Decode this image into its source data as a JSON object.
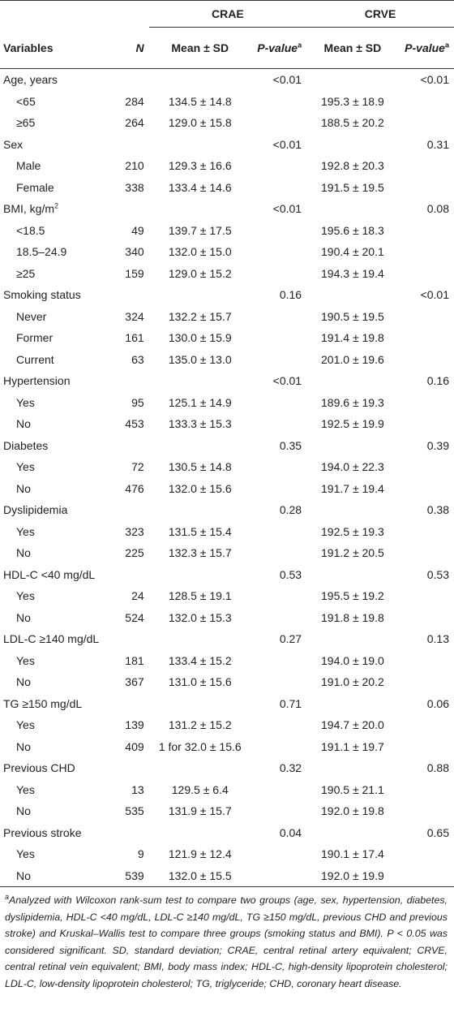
{
  "header": {
    "group_crae": "CRAE",
    "group_crve": "CRVE",
    "col_variables": "Variables",
    "col_n": "N",
    "col_mean_crae": "Mean ± SD",
    "col_p_crae": "P-value",
    "col_mean_crve": "Mean ± SD",
    "col_p_crve": "P-value",
    "sup": "a"
  },
  "rows": [
    {
      "variable": "Age, years",
      "group": true,
      "crae_p": "<0.01",
      "crve_p": "<0.01"
    },
    {
      "variable": "<65",
      "n": "284",
      "crae_mean": "134.5 ± 14.8",
      "crve_mean": "195.3 ± 18.9"
    },
    {
      "variable": "≥65",
      "n": "264",
      "crae_mean": "129.0 ± 15.8",
      "crve_mean": "188.5 ± 20.2"
    },
    {
      "variable": "Sex",
      "group": true,
      "crae_p": "<0.01",
      "crve_p": "0.31"
    },
    {
      "variable": "Male",
      "n": "210",
      "crae_mean": "129.3 ± 16.6",
      "crve_mean": "192.8 ± 20.3"
    },
    {
      "variable": "Female",
      "n": "338",
      "crae_mean": "133.4 ± 14.6",
      "crve_mean": "191.5 ± 19.5"
    },
    {
      "variable": "BMI, kg/m",
      "sup": "2",
      "group": true,
      "crae_p": "<0.01",
      "crve_p": "0.08"
    },
    {
      "variable": "<18.5",
      "n": "49",
      "crae_mean": "139.7 ± 17.5",
      "crve_mean": "195.6 ± 18.3"
    },
    {
      "variable": "18.5–24.9",
      "n": "340",
      "crae_mean": "132.0 ± 15.0",
      "crve_mean": "190.4 ± 20.1"
    },
    {
      "variable": "≥25",
      "n": "159",
      "crae_mean": "129.0 ± 15.2",
      "crve_mean": "194.3 ± 19.4"
    },
    {
      "variable": "Smoking status",
      "group": true,
      "crae_p": "0.16",
      "crve_p": "<0.01"
    },
    {
      "variable": "Never",
      "n": "324",
      "crae_mean": "132.2 ± 15.7",
      "crve_mean": "190.5 ± 19.5"
    },
    {
      "variable": "Former",
      "n": "161",
      "crae_mean": "130.0 ± 15.9",
      "crve_mean": "191.4 ± 19.8"
    },
    {
      "variable": "Current",
      "n": "63",
      "crae_mean": "135.0 ± 13.0",
      "crve_mean": "201.0 ± 19.6"
    },
    {
      "variable": "Hypertension",
      "group": true,
      "crae_p": "<0.01",
      "crve_p": "0.16"
    },
    {
      "variable": "Yes",
      "n": "95",
      "crae_mean": "125.1 ± 14.9",
      "crve_mean": "189.6 ± 19.3"
    },
    {
      "variable": "No",
      "n": "453",
      "crae_mean": "133.3 ± 15.3",
      "crve_mean": "192.5 ± 19.9"
    },
    {
      "variable": "Diabetes",
      "group": true,
      "crae_p": "0.35",
      "crve_p": "0.39"
    },
    {
      "variable": "Yes",
      "n": "72",
      "crae_mean": "130.5 ± 14.8",
      "crve_mean": "194.0 ± 22.3"
    },
    {
      "variable": "No",
      "n": "476",
      "crae_mean": "132.0 ± 15.6",
      "crve_mean": "191.7 ± 19.4"
    },
    {
      "variable": "Dyslipidemia",
      "group": true,
      "crae_p": "0.28",
      "crve_p": "0.38"
    },
    {
      "variable": "Yes",
      "n": "323",
      "crae_mean": "131.5 ± 15.4",
      "crve_mean": "192.5 ± 19.3"
    },
    {
      "variable": "No",
      "n": "225",
      "crae_mean": "132.3 ± 15.7",
      "crve_mean": "191.2 ± 20.5"
    },
    {
      "variable": "HDL-C <40 mg/dL",
      "group": true,
      "crae_p": "0.53",
      "crve_p": "0.53"
    },
    {
      "variable": "Yes",
      "n": "24",
      "crae_mean": "128.5 ± 19.1",
      "crve_mean": "195.5 ± 19.2"
    },
    {
      "variable": "No",
      "n": "524",
      "crae_mean": "132.0 ± 15.3",
      "crve_mean": "191.8 ± 19.8"
    },
    {
      "variable": "LDL-C ≥140 mg/dL",
      "group": true,
      "crae_p": "0.27",
      "crve_p": "0.13"
    },
    {
      "variable": "Yes",
      "n": "181",
      "crae_mean": "133.4 ± 15.2",
      "crve_mean": "194.0 ± 19.0"
    },
    {
      "variable": "No",
      "n": "367",
      "crae_mean": "131.0 ± 15.6",
      "crve_mean": "191.0 ± 20.2"
    },
    {
      "variable": "TG ≥150 mg/dL",
      "group": true,
      "crae_p": "0.71",
      "crve_p": "0.06"
    },
    {
      "variable": "Yes",
      "n": "139",
      "crae_mean": "131.2 ± 15.2",
      "crve_mean": "194.7 ± 20.0"
    },
    {
      "variable": "No",
      "n": "409",
      "crae_mean": "1 for 32.0 ± 15.6",
      "crve_mean": "191.1 ± 19.7"
    },
    {
      "variable": "Previous CHD",
      "group": true,
      "crae_p": "0.32",
      "crve_p": "0.88"
    },
    {
      "variable": "Yes",
      "n": "13",
      "crae_mean": "129.5 ± 6.4",
      "crve_mean": "190.5 ± 21.1"
    },
    {
      "variable": "No",
      "n": "535",
      "crae_mean": "131.9 ± 15.7",
      "crve_mean": "192.0 ± 19.8"
    },
    {
      "variable": "Previous stroke",
      "group": true,
      "crae_p": "0.04",
      "crve_p": "0.65"
    },
    {
      "variable": "Yes",
      "n": "9",
      "crae_mean": "121.9 ± 12.4",
      "crve_mean": "190.1 ± 17.4"
    },
    {
      "variable": "No",
      "n": "539",
      "crae_mean": "132.0 ± 15.5",
      "crve_mean": "192.0 ± 19.9"
    }
  ],
  "footnote": {
    "sup": "a",
    "text": "Analyzed with Wilcoxon rank-sum test to compare two groups (age, sex, hypertension, diabetes, dyslipidemia, HDL-C <40 mg/dL, LDL-C ≥140 mg/dL, TG ≥150 mg/dL, previous CHD and previous stroke) and Kruskal–Wallis test to compare three groups (smoking status and BMI). P < 0.05 was considered significant. SD, standard deviation; CRAE, central retinal artery equivalent; CRVE, central retinal vein equivalent; BMI, body mass index; HDL-C, high-density lipoprotein cholesterol; LDL-C, low-density lipoprotein cholesterol; TG, triglyceride; CHD, coronary heart disease."
  }
}
